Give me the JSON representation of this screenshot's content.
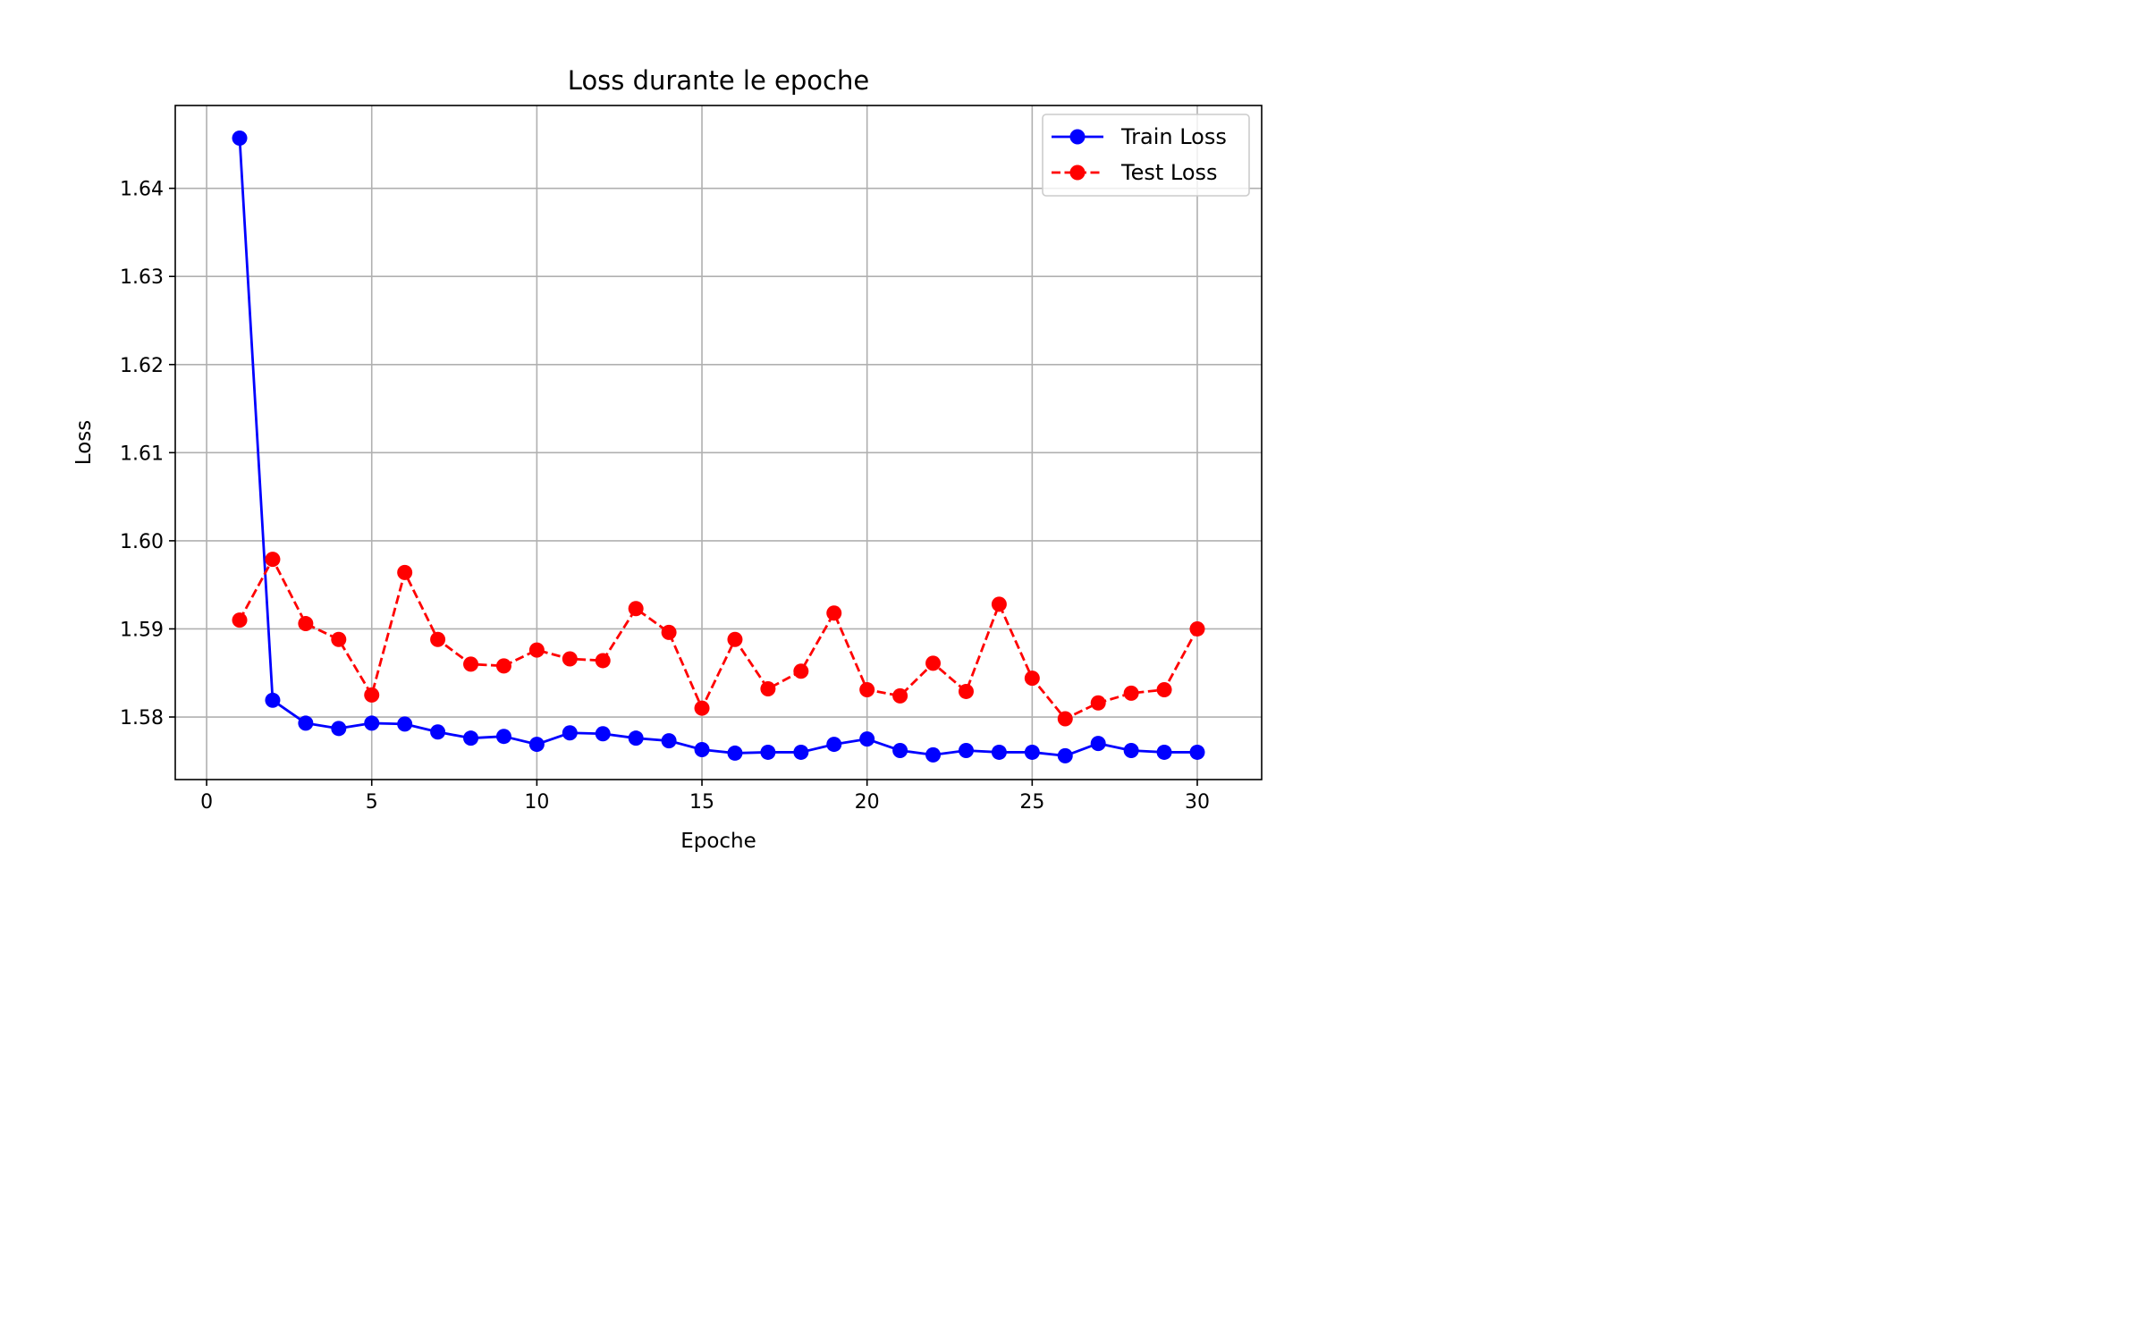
{
  "chart_data": {
    "type": "line",
    "title": "Loss durante le epoche",
    "xlabel": "Epoche",
    "ylabel": "Loss",
    "xlim": [
      -0.95,
      31.95
    ],
    "ylim": [
      1.5729,
      1.6494
    ],
    "xticks": [
      0,
      5,
      10,
      15,
      20,
      25,
      30
    ],
    "xtick_labels": [
      "0",
      "5",
      "10",
      "15",
      "20",
      "25",
      "30"
    ],
    "yticks": [
      1.58,
      1.59,
      1.6,
      1.61,
      1.62,
      1.63,
      1.64
    ],
    "ytick_labels": [
      "1.58",
      "1.59",
      "1.60",
      "1.61",
      "1.62",
      "1.63",
      "1.64"
    ],
    "grid": true,
    "legend_position": "top-right",
    "x": [
      1,
      2,
      3,
      4,
      5,
      6,
      7,
      8,
      9,
      10,
      11,
      12,
      13,
      14,
      15,
      16,
      17,
      18,
      19,
      20,
      21,
      22,
      23,
      24,
      25,
      26,
      27,
      28,
      29,
      30
    ],
    "series": [
      {
        "name": "Train Loss",
        "color": "#0000ff",
        "line_style": "solid",
        "marker": "circle",
        "values": [
          1.6457,
          1.5819,
          1.5793,
          1.5787,
          1.5793,
          1.5792,
          1.5783,
          1.5776,
          1.5778,
          1.5769,
          1.5782,
          1.5781,
          1.5776,
          1.5773,
          1.5763,
          1.5759,
          1.576,
          1.576,
          1.5769,
          1.5775,
          1.5762,
          1.5757,
          1.5762,
          1.576,
          1.576,
          1.5756,
          1.577,
          1.5762,
          1.576,
          1.576
        ]
      },
      {
        "name": "Test Loss",
        "color": "#ff0000",
        "line_style": "dashed",
        "marker": "circle",
        "values": [
          1.591,
          1.5979,
          1.5906,
          1.5888,
          1.5825,
          1.5964,
          1.5888,
          1.586,
          1.5858,
          1.5876,
          1.5866,
          1.5864,
          1.5923,
          1.5896,
          1.581,
          1.5888,
          1.5832,
          1.5852,
          1.5918,
          1.5831,
          1.5824,
          1.5861,
          1.5829,
          1.5928,
          1.5844,
          1.5798,
          1.5816,
          1.5827,
          1.5831,
          1.59
        ]
      }
    ]
  }
}
